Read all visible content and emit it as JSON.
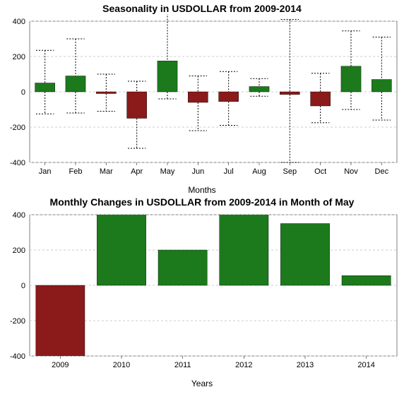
{
  "chart1": {
    "type": "boxplot-bar",
    "title": "Seasonality in USDOLLAR from 2009-2014",
    "title_fontsize": 14,
    "xlabel": "Months",
    "categories": [
      "Jan",
      "Feb",
      "Mar",
      "Apr",
      "May",
      "Jun",
      "Jul",
      "Aug",
      "Sep",
      "Oct",
      "Nov",
      "Dec"
    ],
    "bar_values": [
      50,
      90,
      -10,
      -150,
      175,
      -60,
      -55,
      30,
      -15,
      -80,
      145,
      70
    ],
    "whisker_high": [
      235,
      300,
      100,
      60,
      510,
      90,
      115,
      75,
      410,
      105,
      345,
      310
    ],
    "whisker_low": [
      -125,
      -120,
      -110,
      -320,
      -40,
      -220,
      -190,
      -25,
      -400,
      -175,
      -100,
      -160
    ],
    "ylim": [
      -400,
      400
    ],
    "yticks": [
      -400,
      -200,
      0,
      200,
      400
    ],
    "positive_color": "#1c7a1c",
    "negative_color": "#8b1a1a",
    "grid_color": "#cccccc",
    "background": "#ffffff",
    "bar_width": 0.65
  },
  "chart2": {
    "type": "bar",
    "title": "Monthly Changes in USDOLLAR from 2009-2014 in Month of May",
    "title_fontsize": 14,
    "xlabel": "Years",
    "categories": [
      "2009",
      "2010",
      "2011",
      "2012",
      "2013",
      "2014"
    ],
    "values": [
      -440,
      480,
      200,
      420,
      350,
      55
    ],
    "ylim": [
      -400,
      400
    ],
    "yticks": [
      -400,
      -200,
      0,
      200,
      400
    ],
    "positive_color": "#1c7a1c",
    "negative_color": "#8b1a1a",
    "grid_color": "#cccccc",
    "background": "#ffffff",
    "bar_width": 0.8
  }
}
